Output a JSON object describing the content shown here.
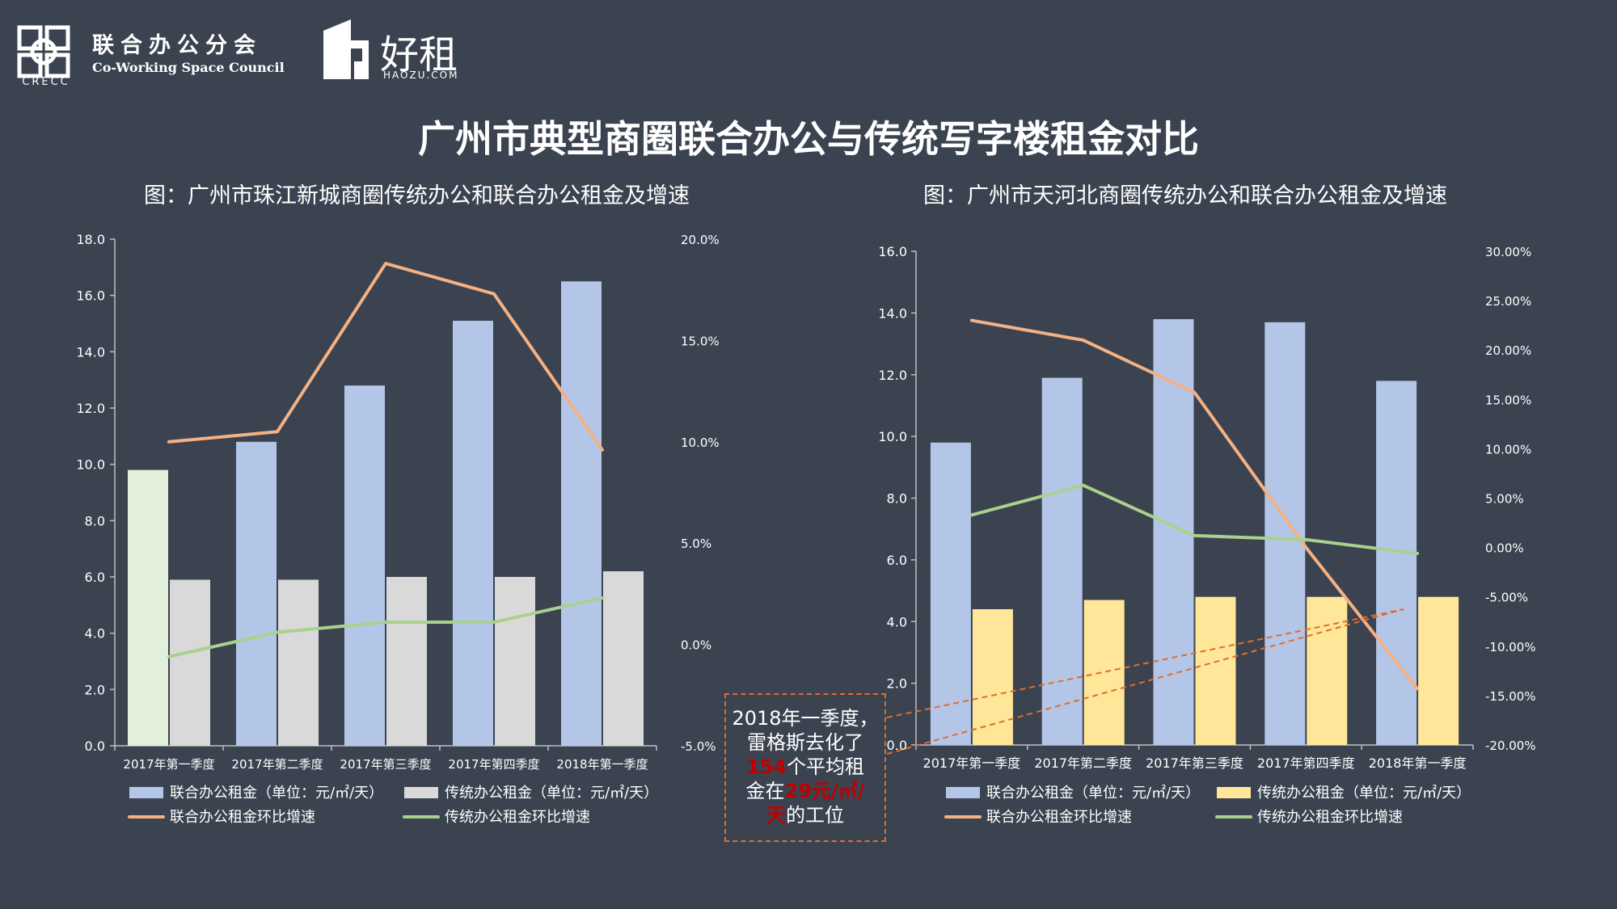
{
  "header": {
    "crecc_sub": "CRECC",
    "council_cn": "联合办公分会",
    "council_en": "Co-Working Space Council",
    "haozu_cn": "好租",
    "haozu_en": "HAOZU.COM"
  },
  "main_title": "广州市典型商圈联合办公与传统写字楼租金对比",
  "chart_data": [
    {
      "type": "bar",
      "title": "图：广州市珠江新城商圈传统办公和联合办公租金及增速",
      "categories": [
        "2017年第一季度",
        "2017年第二季度",
        "2017年第三季度",
        "2017年第四季度",
        "2018年第一季度"
      ],
      "y_ticks": [
        "0.0",
        "2.0",
        "4.0",
        "6.0",
        "8.0",
        "10.0",
        "12.0",
        "14.0",
        "16.0",
        "18.0"
      ],
      "y2_ticks": [
        "-5.0%",
        "0.0%",
        "5.0%",
        "10.0%",
        "15.0%",
        "20.0%"
      ],
      "ylim": [
        0,
        18
      ],
      "y2lim": [
        -5,
        20
      ],
      "series": [
        {
          "name": "联合办公租金（单位：元/㎡/天）",
          "kind": "bar",
          "color": "#b4c6e7",
          "values": [
            9.8,
            10.8,
            12.8,
            15.1,
            16.5
          ]
        },
        {
          "name": "传统办公租金（单位：元/㎡/天）",
          "kind": "bar",
          "color": "#d9d9d9",
          "values": [
            5.9,
            5.9,
            6.0,
            6.0,
            6.2
          ]
        },
        {
          "name": "联合办公租金环比增速",
          "kind": "line",
          "axis": "right",
          "color": "#f4b183",
          "values": [
            10.0,
            10.5,
            18.8,
            17.3,
            9.6
          ]
        },
        {
          "name": "传统办公租金环比增速",
          "kind": "line",
          "axis": "right",
          "color": "#a9d18e",
          "values": [
            -0.6,
            0.6,
            1.1,
            1.1,
            2.3
          ]
        }
      ]
    },
    {
      "type": "bar",
      "title": "图：广州市天河北商圈传统办公和联合办公租金及增速",
      "categories": [
        "2017年第一季度",
        "2017年第二季度",
        "2017年第三季度",
        "2017年第四季度",
        "2018年第一季度"
      ],
      "y_ticks": [
        "0.0",
        "2.0",
        "4.0",
        "6.0",
        "8.0",
        "10.0",
        "12.0",
        "14.0",
        "16.0"
      ],
      "y2_ticks": [
        "-20.00%",
        "-15.00%",
        "-10.00%",
        "-5.00%",
        "0.00%",
        "5.00%",
        "10.00%",
        "15.00%",
        "20.00%",
        "25.00%",
        "30.00%"
      ],
      "ylim": [
        0,
        16
      ],
      "y2lim": [
        -20,
        30
      ],
      "series": [
        {
          "name": "联合办公租金（单位：元/㎡/天）",
          "kind": "bar",
          "color": "#b4c6e7",
          "values": [
            9.8,
            11.9,
            13.8,
            13.7,
            11.8
          ]
        },
        {
          "name": "传统办公租金（单位：元/㎡/天）",
          "kind": "bar",
          "color": "#ffe699",
          "values": [
            4.4,
            4.7,
            4.8,
            4.8,
            4.8
          ]
        },
        {
          "name": "联合办公租金环比增速",
          "kind": "line",
          "axis": "right",
          "color": "#f4b183",
          "values": [
            23.0,
            21.0,
            15.7,
            0.0,
            -14.3
          ]
        },
        {
          "name": "传统办公租金环比增速",
          "kind": "line",
          "axis": "right",
          "color": "#a9d18e",
          "values": [
            3.3,
            6.3,
            1.2,
            0.8,
            -0.6
          ]
        }
      ]
    }
  ],
  "annotation": {
    "line1": "2018年一季度，",
    "line2": "雷格斯去化了",
    "count": "154",
    "line3": "个平均租",
    "line4": "金在",
    "price": "29元/㎡/",
    "price2": "天",
    "line5": "的工位"
  },
  "colors": {
    "background": "#3b4351",
    "callout": "#e36c2a",
    "highlight": "#c00000"
  }
}
